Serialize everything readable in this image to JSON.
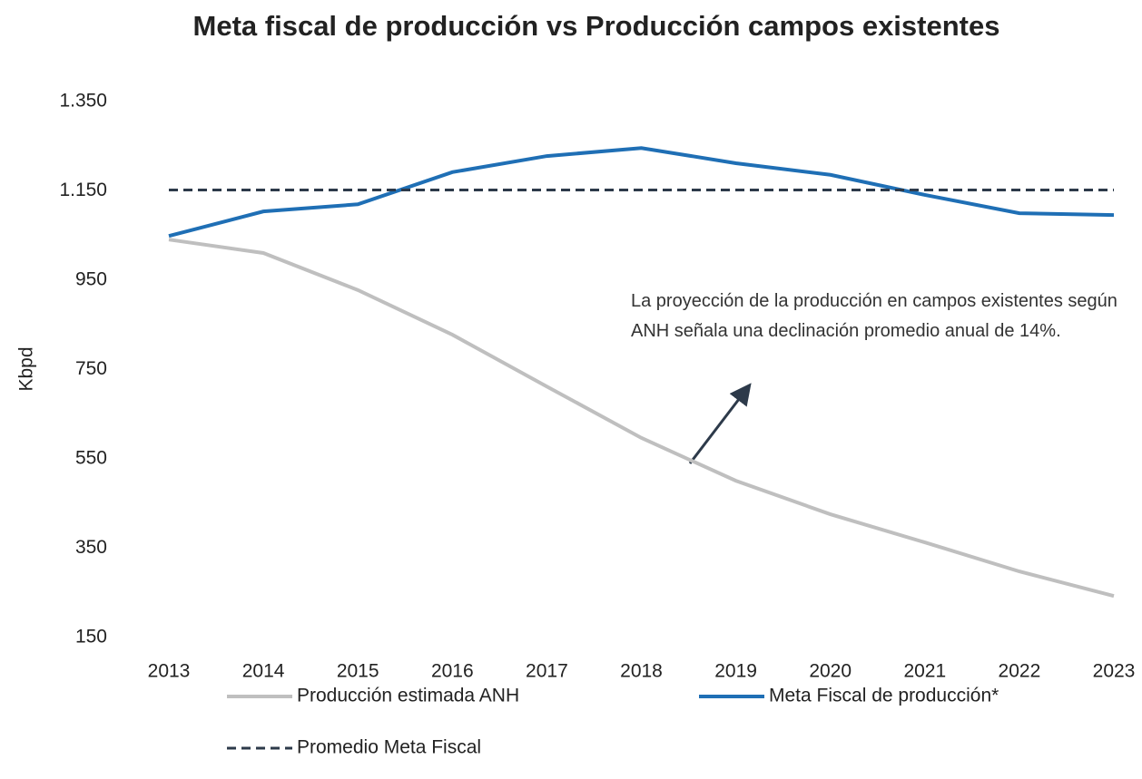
{
  "chart_data": {
    "type": "line",
    "title": "Meta fiscal de producción vs Producción campos existentes",
    "ylabel": "Kbpd",
    "categories": [
      "2013",
      "2014",
      "2015",
      "2016",
      "2017",
      "2018",
      "2019",
      "2020",
      "2021",
      "2022",
      "2023"
    ],
    "series": [
      {
        "name": "Producción estimada ANH",
        "color": "#bfbfbf",
        "style": "solid",
        "values": [
          1041,
          1011,
          928,
          828,
          712,
          597,
          501,
          426,
          363,
          298,
          243
        ]
      },
      {
        "name": "Meta Fiscal de producción*",
        "color": "#1f6fb5",
        "style": "solid",
        "values": [
          1049,
          1104,
          1120,
          1192,
          1228,
          1246,
          1212,
          1186,
          1141,
          1100,
          1096
        ]
      },
      {
        "name": "Promedio Meta Fiscal",
        "color": "#2d3a4a",
        "style": "dashed",
        "values": [
          1152,
          1152,
          1152,
          1152,
          1152,
          1152,
          1152,
          1152,
          1152,
          1152,
          1152
        ]
      }
    ],
    "ylim": [
      150,
      1350
    ],
    "yticks": [
      150,
      350,
      550,
      750,
      950,
      {
        "value": 1150,
        "label": "1.150"
      },
      {
        "value": 1350,
        "label": "1.350"
      }
    ],
    "grid": false,
    "annotation": "La proyección de la producción en campos existentes según ANH señala una declinación promedio anual de 14%."
  }
}
